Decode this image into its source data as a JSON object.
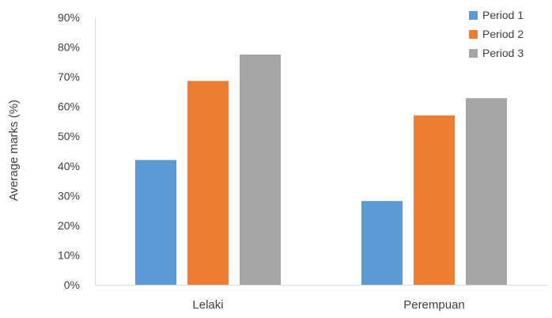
{
  "chart_data": {
    "type": "bar",
    "title": "",
    "xlabel": "",
    "ylabel": "Average marks (%)",
    "categories": [
      "Lelaki",
      "Perempuan"
    ],
    "series": [
      {
        "name": "Period 1",
        "values": [
          42,
          28.2
        ],
        "color": "#5B9BD5"
      },
      {
        "name": "Period 2",
        "values": [
          68.6,
          57
        ],
        "color": "#ED7D31"
      },
      {
        "name": "Period 3",
        "values": [
          77.5,
          62.8
        ],
        "color": "#A5A5A5"
      }
    ],
    "ylim": [
      0,
      90
    ],
    "yticks": [
      0,
      10,
      20,
      30,
      40,
      50,
      60,
      70,
      80,
      90
    ],
    "ytick_labels": [
      "0%",
      "10%",
      "20%",
      "30%",
      "40%",
      "50%",
      "60%",
      "70%",
      "80%",
      "90%"
    ],
    "grid": false,
    "legend_position": "top-right"
  }
}
